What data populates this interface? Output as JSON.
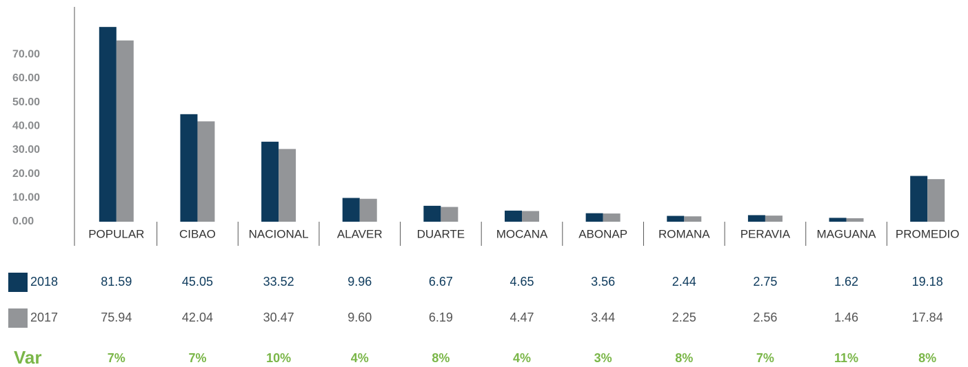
{
  "chart_data": {
    "type": "bar",
    "categories": [
      "POPULAR",
      "CIBAO",
      "NACIONAL",
      "ALAVER",
      "DUARTE",
      "MOCANA",
      "ABONAP",
      "ROMANA",
      "PERAVIA",
      "MAGUANA",
      "PROMEDIO"
    ],
    "series": [
      {
        "name": "2018",
        "color": "#0d3a5c",
        "values": [
          81.59,
          45.05,
          33.52,
          9.96,
          6.67,
          4.65,
          3.56,
          2.44,
          2.75,
          1.62,
          19.18
        ],
        "value_labels": [
          "81.59",
          "45.05",
          "33.52",
          "9.96",
          "6.67",
          "4.65",
          "3.56",
          "2.44",
          "2.75",
          "1.62",
          "19.18"
        ]
      },
      {
        "name": "2017",
        "color": "#939598",
        "values": [
          75.94,
          42.04,
          30.47,
          9.6,
          6.19,
          4.47,
          3.44,
          2.25,
          2.56,
          1.46,
          17.84
        ],
        "value_labels": [
          "75.94",
          "42.04",
          "30.47",
          "9.60",
          "6.19",
          "4.47",
          "3.44",
          "2.25",
          "2.56",
          "1.46",
          "17.84"
        ]
      }
    ],
    "variation": {
      "label": "Var",
      "values": [
        7,
        7,
        10,
        4,
        8,
        4,
        3,
        8,
        7,
        11,
        8
      ],
      "value_labels": [
        "7%",
        "7%",
        "10%",
        "4%",
        "8%",
        "4%",
        "3%",
        "8%",
        "7%",
        "11%",
        "8%"
      ]
    },
    "ylim": [
      0,
      90
    ],
    "yticks": [
      {
        "value": 0,
        "label": "0.00"
      },
      {
        "value": 10,
        "label": "10.00"
      },
      {
        "value": 20,
        "label": "20.00"
      },
      {
        "value": 30,
        "label": "30.00"
      },
      {
        "value": 40,
        "label": "40.00"
      },
      {
        "value": 50,
        "label": "50.00"
      },
      {
        "value": 60,
        "label": "60.00"
      },
      {
        "value": 70,
        "label": "70.00"
      }
    ],
    "grid": false
  }
}
